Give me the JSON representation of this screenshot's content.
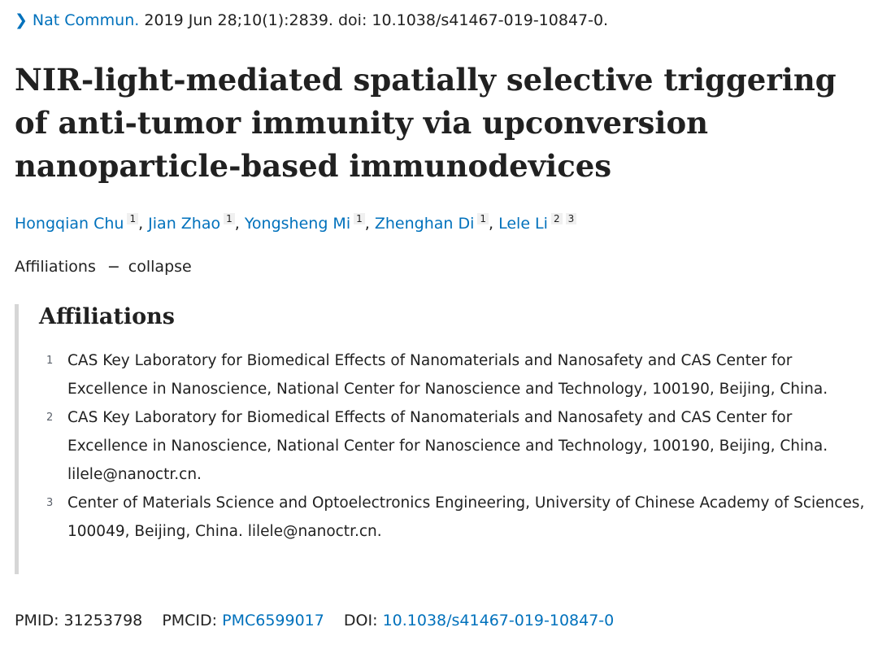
{
  "citation": {
    "journal": "Nat Commun.",
    "details": "2019 Jun 28;10(1):2839. doi: 10.1038/s41467-019-10847-0."
  },
  "title": "NIR-light-mediated spatially selective triggering of anti-tumor immunity via upconversion nanoparticle-based immunodevices",
  "authors": [
    {
      "name": "Hongqian Chu",
      "affs": [
        "1"
      ]
    },
    {
      "name": "Jian Zhao",
      "affs": [
        "1"
      ]
    },
    {
      "name": "Yongsheng Mi",
      "affs": [
        "1"
      ]
    },
    {
      "name": "Zhenghan Di",
      "affs": [
        "1"
      ]
    },
    {
      "name": "Lele Li",
      "affs": [
        "2",
        "3"
      ]
    }
  ],
  "affiliations_toggle": {
    "label": "Affiliations",
    "dash": "−",
    "action": "collapse"
  },
  "affiliations": {
    "heading": "Affiliations",
    "items": [
      {
        "num": "1",
        "text": "CAS Key Laboratory for Biomedical Effects of Nanomaterials and Nanosafety and CAS Center for Excellence in Nanoscience, National Center for Nanoscience and Technology, 100190, Beijing, China."
      },
      {
        "num": "2",
        "text": "CAS Key Laboratory for Biomedical Effects of Nanomaterials and Nanosafety and CAS Center for Excellence in Nanoscience, National Center for Nanoscience and Technology, 100190, Beijing, China. lilele@nanoctr.cn."
      },
      {
        "num": "3",
        "text": "Center of Materials Science and Optoelectronics Engineering, University of Chinese Academy of Sciences, 100049, Beijing, China. lilele@nanoctr.cn."
      }
    ]
  },
  "identifiers": {
    "pmid_label": "PMID:",
    "pmid": "31253798",
    "pmcid_label": "PMCID:",
    "pmcid": "PMC6599017",
    "doi_label": "DOI:",
    "doi": "10.1038/s41467-019-10847-0"
  },
  "colors": {
    "link": "#0071bc",
    "text": "#212121",
    "border": "#d6d6d6"
  },
  "icons": {
    "citation_toggle": "chevron-right-icon"
  }
}
